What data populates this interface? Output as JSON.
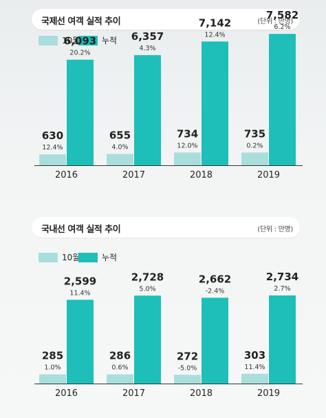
{
  "charts": [
    {
      "title": "국제선 여객 실적 추이",
      "unit": "(단위 : 만명)",
      "legend": [
        {
          "label": "10월",
          "color": "#a9dedc"
        },
        {
          "label": "누적",
          "color": "#1dbfb8"
        }
      ],
      "chart_data": {
        "type": "bar",
        "categories": [
          "2016",
          "2017",
          "2018",
          "2019"
        ],
        "series": [
          {
            "name": "10월",
            "values": [
              630,
              655,
              734,
              735
            ],
            "labels": [
              "630",
              "655",
              "734",
              "735"
            ],
            "growth": [
              "12.4%",
              "4.0%",
              "12.0%",
              "0.2%"
            ]
          },
          {
            "name": "누적",
            "values": [
              6093,
              6357,
              7142,
              7582
            ],
            "labels": [
              "6,093",
              "6,357",
              "7,142",
              "7,582"
            ],
            "growth": [
              "20.2%",
              "4.3%",
              "12.4%",
              "6.2%"
            ]
          }
        ],
        "title": "국제선 여객 실적 추이",
        "xlabel": "",
        "ylabel": ""
      }
    },
    {
      "title": "국내선 여객 실적 추이",
      "unit": "(단위 : 만명)",
      "legend": [
        {
          "label": "10월",
          "color": "#a9dedc"
        },
        {
          "label": "누적",
          "color": "#1dbfb8"
        }
      ],
      "chart_data": {
        "type": "bar",
        "categories": [
          "2016",
          "2017",
          "2018",
          "2019"
        ],
        "series": [
          {
            "name": "10월",
            "values": [
              285,
              286,
              272,
              303
            ],
            "labels": [
              "285",
              "286",
              "272",
              "303"
            ],
            "growth": [
              "1.0%",
              "0.6%",
              "-5.0%",
              "11.4%"
            ]
          },
          {
            "name": "누적",
            "values": [
              2599,
              2728,
              2662,
              2734
            ],
            "labels": [
              "2,599",
              "2,728",
              "2,662",
              "2,734"
            ],
            "growth": [
              "11.4%",
              "5.0%",
              "-2.4%",
              "2.7%"
            ]
          }
        ],
        "title": "국내선 여객 실적 추이",
        "xlabel": "",
        "ylabel": ""
      }
    }
  ]
}
